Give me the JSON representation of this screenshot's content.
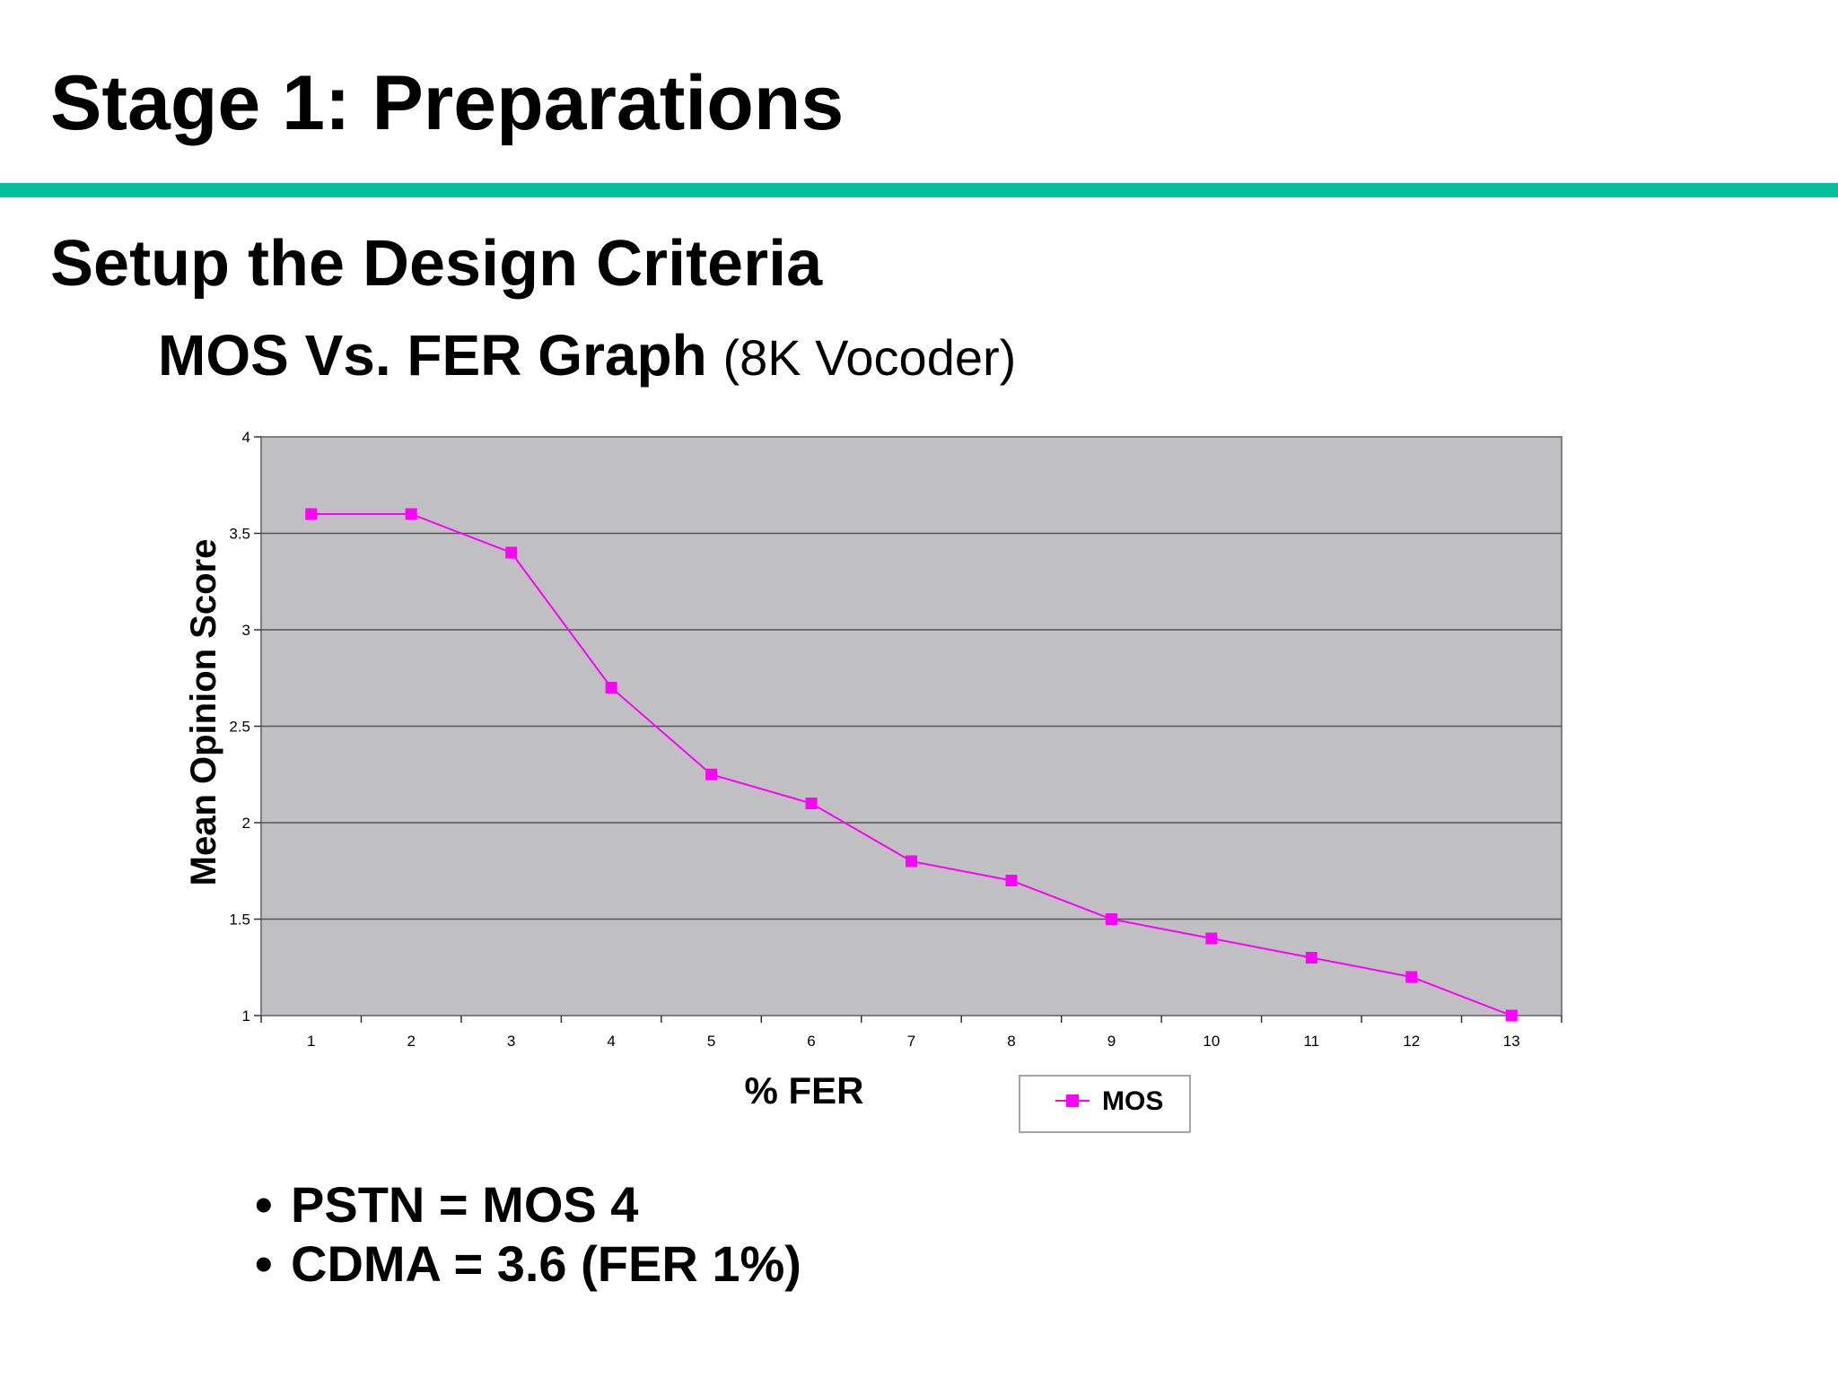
{
  "slide": {
    "title": "Stage 1: Preparations",
    "subtitle": "Setup the Design Criteria",
    "graph_title": "MOS Vs. FER Graph",
    "graph_note": "(8K Vocoder)",
    "accent_color": "#00c29a",
    "bullets": [
      {
        "bullet": "•",
        "text": "PSTN = MOS 4"
      },
      {
        "bullet": "•",
        "text": "CDMA = 3.6 (FER 1%)"
      }
    ]
  },
  "chart_data": {
    "type": "line",
    "x": [
      1,
      2,
      3,
      4,
      5,
      6,
      7,
      8,
      9,
      10,
      11,
      12,
      13
    ],
    "series": [
      {
        "name": "MOS",
        "values": [
          3.6,
          3.6,
          3.4,
          2.7,
          2.25,
          2.1,
          1.8,
          1.7,
          1.5,
          1.4,
          1.3,
          1.2,
          1.0
        ],
        "color": "#ff00ff",
        "marker": "square"
      }
    ],
    "xlabel": "% FER",
    "ylabel": "Mean Opinion Score",
    "ylim": [
      1,
      4
    ],
    "yticks": [
      "1",
      "1.5",
      "2",
      "2.5",
      "3",
      "3.5",
      "4"
    ],
    "xticks": [
      "1",
      "2",
      "3",
      "4",
      "5",
      "6",
      "7",
      "8",
      "9",
      "10",
      "11",
      "12",
      "13"
    ],
    "grid": true,
    "plot_background": "#c0bfc1",
    "legend": "bottom-right"
  }
}
